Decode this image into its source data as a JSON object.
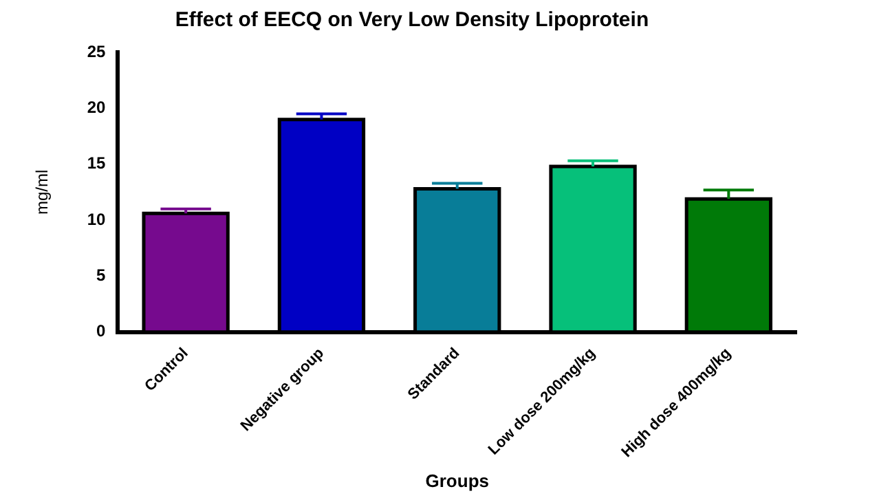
{
  "chart_data": {
    "type": "bar",
    "title": "Effect of EECQ on Very Low Density Lipoprotein",
    "xlabel": "Groups",
    "ylabel": "mg/ml",
    "categories": [
      "Control",
      "Negative group",
      "Standard",
      "Low dose 200mg/kg",
      "High dose 400mg/kg"
    ],
    "values": [
      10.6,
      19.0,
      12.8,
      14.8,
      11.9
    ],
    "colors": [
      "#760a8e",
      "#0000c4",
      "#087d98",
      "#06c07a",
      "#007a08"
    ],
    "errors": [
      [
        10.6,
        11.0
      ],
      [
        19.0,
        19.5
      ],
      [
        12.8,
        13.3
      ],
      [
        14.8,
        15.3
      ],
      [
        11.9,
        12.7
      ]
    ],
    "ylim": [
      0,
      25
    ],
    "yticks": [
      0,
      5,
      10,
      15,
      20,
      25
    ],
    "grid": false,
    "legend": false
  }
}
